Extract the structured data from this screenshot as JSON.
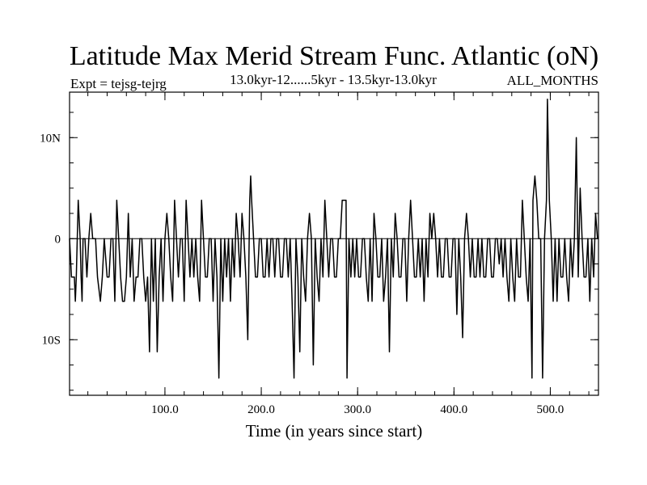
{
  "chart_data": {
    "type": "line",
    "title": "Latitude Max Merid Stream Func. Atlantic (oN)",
    "subtitle_left": "Expt = tejsg-tejrg",
    "subtitle_center": "13.0kyr-12......5kyr - 13.5kyr-13.0kyr",
    "subtitle_right": "ALL_MONTHS",
    "xlabel": "Time (in years since start)",
    "ylabel": "",
    "xlim": [
      1,
      550
    ],
    "ylim": [
      -15.5,
      14.5
    ],
    "x_ticks": [
      {
        "value": 100,
        "label": "100.0"
      },
      {
        "value": 200,
        "label": "200.0"
      },
      {
        "value": 300,
        "label": "300.0"
      },
      {
        "value": 400,
        "label": "400.0"
      },
      {
        "value": 500,
        "label": "500.0"
      }
    ],
    "y_ticks": [
      {
        "value": 10,
        "label": "10N"
      },
      {
        "value": 0,
        "label": "0"
      },
      {
        "value": -10,
        "label": "10S"
      }
    ],
    "x_minor_step": 20,
    "y_minor_step": 2.5,
    "grid": false,
    "series": [
      {
        "name": "tejsg-tejrg",
        "color": "#000000",
        "points": [
          [
            1,
            0
          ],
          [
            3,
            -3.8
          ],
          [
            6,
            -3.8
          ],
          [
            7,
            -6.2
          ],
          [
            8,
            -3.8
          ],
          [
            10,
            3.8
          ],
          [
            12,
            0
          ],
          [
            13,
            -3.8
          ],
          [
            14,
            -6.2
          ],
          [
            15,
            0
          ],
          [
            17,
            0
          ],
          [
            19,
            -3.8
          ],
          [
            21,
            0
          ],
          [
            23,
            2.5
          ],
          [
            25,
            0
          ],
          [
            28,
            0
          ],
          [
            30,
            -3.8
          ],
          [
            33,
            -6.2
          ],
          [
            35,
            -3.8
          ],
          [
            37,
            0
          ],
          [
            40,
            -3.8
          ],
          [
            42,
            -3.8
          ],
          [
            44,
            0
          ],
          [
            46,
            0
          ],
          [
            48,
            -6.2
          ],
          [
            50,
            3.8
          ],
          [
            52,
            0
          ],
          [
            54,
            -3.8
          ],
          [
            56,
            -6.2
          ],
          [
            58,
            -6.2
          ],
          [
            60,
            -3.8
          ],
          [
            62,
            2.5
          ],
          [
            64,
            -3.8
          ],
          [
            66,
            0
          ],
          [
            68,
            -6.2
          ],
          [
            70,
            -3.8
          ],
          [
            72,
            -3.8
          ],
          [
            74,
            0
          ],
          [
            76,
            0
          ],
          [
            78,
            -3.8
          ],
          [
            80,
            -6.2
          ],
          [
            82,
            -3.8
          ],
          [
            84,
            -11.2
          ],
          [
            86,
            0
          ],
          [
            88,
            -6.2
          ],
          [
            90,
            0
          ],
          [
            92,
            -11.2
          ],
          [
            94,
            -3.8
          ],
          [
            96,
            0
          ],
          [
            98,
            -6.2
          ],
          [
            100,
            0
          ],
          [
            102,
            2.5
          ],
          [
            104,
            0
          ],
          [
            106,
            -3.8
          ],
          [
            108,
            -6.2
          ],
          [
            110,
            3.8
          ],
          [
            112,
            0
          ],
          [
            114,
            -3.8
          ],
          [
            116,
            0
          ],
          [
            118,
            0
          ],
          [
            120,
            -6.2
          ],
          [
            122,
            3.8
          ],
          [
            124,
            0
          ],
          [
            126,
            -3.8
          ],
          [
            128,
            0
          ],
          [
            130,
            -3.8
          ],
          [
            132,
            0
          ],
          [
            134,
            -3.8
          ],
          [
            136,
            -6.2
          ],
          [
            138,
            3.8
          ],
          [
            140,
            0
          ],
          [
            142,
            -3.8
          ],
          [
            144,
            -3.8
          ],
          [
            146,
            0
          ],
          [
            148,
            0
          ],
          [
            150,
            -6.2
          ],
          [
            152,
            0
          ],
          [
            154,
            -3.8
          ],
          [
            156,
            -13.8
          ],
          [
            158,
            0
          ],
          [
            160,
            -6.2
          ],
          [
            162,
            0
          ],
          [
            164,
            -3.8
          ],
          [
            166,
            0
          ],
          [
            168,
            -6.2
          ],
          [
            170,
            0
          ],
          [
            172,
            -3.8
          ],
          [
            174,
            2.5
          ],
          [
            176,
            0
          ],
          [
            178,
            -3.8
          ],
          [
            180,
            2.5
          ],
          [
            182,
            0
          ],
          [
            184,
            -3.8
          ],
          [
            186,
            -10
          ],
          [
            188,
            3.8
          ],
          [
            189,
            6.2
          ],
          [
            190,
            3.8
          ],
          [
            192,
            0
          ],
          [
            194,
            -3.8
          ],
          [
            196,
            -3.8
          ],
          [
            198,
            0
          ],
          [
            200,
            0
          ],
          [
            202,
            -3.8
          ],
          [
            204,
            -3.8
          ],
          [
            206,
            0
          ],
          [
            208,
            -3.8
          ],
          [
            210,
            0
          ],
          [
            212,
            0
          ],
          [
            214,
            -3.8
          ],
          [
            216,
            0
          ],
          [
            218,
            0
          ],
          [
            220,
            -3.8
          ],
          [
            222,
            -3.8
          ],
          [
            224,
            0
          ],
          [
            226,
            0
          ],
          [
            228,
            -3.8
          ],
          [
            230,
            0
          ],
          [
            232,
            -6.2
          ],
          [
            234,
            -13.8
          ],
          [
            236,
            0
          ],
          [
            238,
            -3.8
          ],
          [
            240,
            -11.2
          ],
          [
            242,
            0
          ],
          [
            244,
            -3.8
          ],
          [
            246,
            -6.2
          ],
          [
            248,
            0
          ],
          [
            250,
            2.5
          ],
          [
            252,
            0
          ],
          [
            254,
            -12.5
          ],
          [
            256,
            0
          ],
          [
            258,
            -3.8
          ],
          [
            260,
            -6.2
          ],
          [
            262,
            0
          ],
          [
            264,
            -3.8
          ],
          [
            266,
            3.8
          ],
          [
            268,
            0
          ],
          [
            270,
            -3.8
          ],
          [
            272,
            0
          ],
          [
            274,
            0
          ],
          [
            276,
            -3.8
          ],
          [
            278,
            -3.8
          ],
          [
            280,
            0
          ],
          [
            282,
            0
          ],
          [
            284,
            3.8
          ],
          [
            288,
            3.8
          ],
          [
            289,
            -13.8
          ],
          [
            291,
            0
          ],
          [
            293,
            -3.8
          ],
          [
            295,
            0
          ],
          [
            297,
            -3.8
          ],
          [
            299,
            0
          ],
          [
            301,
            -3.8
          ],
          [
            303,
            -3.8
          ],
          [
            305,
            0
          ],
          [
            307,
            0
          ],
          [
            309,
            -3.8
          ],
          [
            311,
            -6.2
          ],
          [
            313,
            0
          ],
          [
            315,
            -6.2
          ],
          [
            317,
            2.5
          ],
          [
            319,
            0
          ],
          [
            321,
            -3.8
          ],
          [
            323,
            -3.8
          ],
          [
            325,
            0
          ],
          [
            327,
            -6.2
          ],
          [
            329,
            -3.8
          ],
          [
            331,
            0
          ],
          [
            333,
            -11.2
          ],
          [
            335,
            0
          ],
          [
            337,
            -3.8
          ],
          [
            339,
            2.5
          ],
          [
            341,
            0
          ],
          [
            343,
            -3.8
          ],
          [
            345,
            -3.8
          ],
          [
            347,
            0
          ],
          [
            349,
            0
          ],
          [
            351,
            -6.2
          ],
          [
            353,
            0
          ],
          [
            355,
            3.8
          ],
          [
            357,
            0
          ],
          [
            359,
            -3.8
          ],
          [
            361,
            -3.8
          ],
          [
            363,
            0
          ],
          [
            365,
            -3.8
          ],
          [
            367,
            0
          ],
          [
            369,
            -6.2
          ],
          [
            371,
            0
          ],
          [
            373,
            -3.8
          ],
          [
            375,
            2.5
          ],
          [
            377,
            0
          ],
          [
            379,
            2.5
          ],
          [
            381,
            0
          ],
          [
            383,
            -3.8
          ],
          [
            385,
            0
          ],
          [
            387,
            -3.8
          ],
          [
            389,
            -3.8
          ],
          [
            391,
            0
          ],
          [
            393,
            0
          ],
          [
            395,
            -3.8
          ],
          [
            397,
            -3.8
          ],
          [
            399,
            0
          ],
          [
            401,
            0
          ],
          [
            403,
            -7.5
          ],
          [
            405,
            0
          ],
          [
            407,
            -3.8
          ],
          [
            409,
            -9.8
          ],
          [
            411,
            0
          ],
          [
            413,
            2.5
          ],
          [
            415,
            0
          ],
          [
            417,
            -3.8
          ],
          [
            419,
            0
          ],
          [
            421,
            -3.8
          ],
          [
            423,
            -3.8
          ],
          [
            425,
            0
          ],
          [
            427,
            -3.8
          ],
          [
            429,
            0
          ],
          [
            431,
            -3.8
          ],
          [
            433,
            -3.8
          ],
          [
            435,
            0
          ],
          [
            437,
            0
          ],
          [
            439,
            -3.8
          ],
          [
            441,
            -3.8
          ],
          [
            443,
            0
          ],
          [
            445,
            0
          ],
          [
            447,
            -2.5
          ],
          [
            449,
            0
          ],
          [
            451,
            -3.8
          ],
          [
            453,
            0
          ],
          [
            455,
            -3.8
          ],
          [
            457,
            -6.2
          ],
          [
            459,
            0
          ],
          [
            461,
            -3.8
          ],
          [
            463,
            -6.2
          ],
          [
            465,
            0
          ],
          [
            467,
            -3.8
          ],
          [
            469,
            -3.8
          ],
          [
            471,
            3.8
          ],
          [
            473,
            0
          ],
          [
            475,
            -3.8
          ],
          [
            477,
            -6.2
          ],
          [
            479,
            0
          ],
          [
            481,
            -13.8
          ],
          [
            482,
            3.8
          ],
          [
            484,
            6.2
          ],
          [
            486,
            3.8
          ],
          [
            488,
            0
          ],
          [
            490,
            0
          ],
          [
            492,
            -13.8
          ],
          [
            494,
            0
          ],
          [
            496,
            3.8
          ],
          [
            497,
            13.8
          ],
          [
            499,
            3.8
          ],
          [
            501,
            0
          ],
          [
            503,
            -6.2
          ],
          [
            505,
            0
          ],
          [
            507,
            -6.2
          ],
          [
            509,
            0
          ],
          [
            511,
            -3.8
          ],
          [
            513,
            -3.8
          ],
          [
            515,
            0
          ],
          [
            517,
            -3.8
          ],
          [
            519,
            -6.2
          ],
          [
            521,
            0
          ],
          [
            523,
            -3.8
          ],
          [
            525,
            0
          ],
          [
            527,
            10
          ],
          [
            529,
            -3.8
          ],
          [
            531,
            5
          ],
          [
            533,
            0
          ],
          [
            535,
            -3.8
          ],
          [
            537,
            -3.8
          ],
          [
            539,
            0
          ],
          [
            541,
            -6.2
          ],
          [
            543,
            0
          ],
          [
            545,
            -3.8
          ],
          [
            547,
            2.5
          ],
          [
            549,
            0
          ],
          [
            550,
            0
          ]
        ]
      }
    ]
  }
}
